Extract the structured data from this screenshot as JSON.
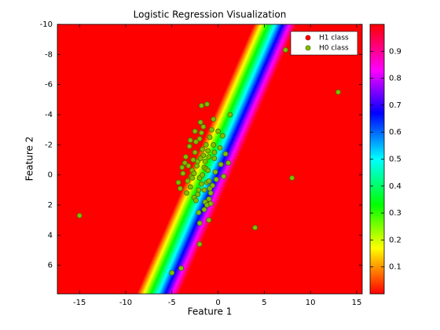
{
  "chart_data": {
    "type": "scatter",
    "title": "Logistic Regression Visualization",
    "xlabel": "Feature 1",
    "ylabel": "Feature 2",
    "xlim": [
      -17.4,
      15.6
    ],
    "ylim": [
      -10,
      7.9
    ],
    "y_reversed": true,
    "xticks": [
      -15,
      -10,
      -5,
      0,
      5,
      10,
      15
    ],
    "yticks": [
      -10,
      -8,
      -6,
      -4,
      -2,
      0,
      2,
      4,
      6
    ],
    "legend": "upper right",
    "colorbar": {
      "clim": [
        0,
        1
      ],
      "ticks": [
        0.1,
        0.2,
        0.3,
        0.4,
        0.5,
        0.6,
        0.7,
        0.8,
        0.9
      ]
    },
    "series": [
      {
        "name": "H1 class",
        "color": "#ff0000",
        "edge": "#b00000",
        "x": [],
        "y": []
      },
      {
        "name": "H0 class",
        "color": "#7fbf00",
        "edge": "#4a6e00",
        "x": [
          -1.5,
          -2,
          -1,
          -0.5,
          -2.5,
          -3,
          -1.8,
          -1.2,
          -0.8,
          -2.2,
          -1.6,
          -0.3,
          0.2,
          -2.8,
          -3.3,
          -1.4,
          -0.9,
          -2.1,
          -1.7,
          -1.1,
          -0.6,
          -2.4,
          -3.6,
          -4.1,
          -1.9,
          -1.3,
          -0.4,
          0.5,
          0.8,
          -2.6,
          -3.1,
          -1.5,
          -2.3,
          -0.7,
          -1.0,
          -2.9,
          -3.8,
          -1.6,
          -0.2,
          0.3,
          -2.0,
          -1.2,
          -2.7,
          -3.4,
          -0.5,
          -1.8,
          -2.5,
          -1.4,
          -0.9,
          -3.0,
          -4.3,
          -2.2,
          -1.1,
          0.0,
          -1.7,
          -2.8,
          -3.5,
          -0.8,
          -1.3,
          -2.1,
          -3.9,
          -2.6,
          -1.5,
          -0.4,
          0.6,
          1.1,
          -2.4,
          -1.9,
          -3.2,
          -1.0,
          -15,
          13,
          7.3,
          8,
          4,
          -5,
          -4,
          -2,
          -1.8,
          -1.2,
          1.3,
          -2,
          -1
        ],
        "y": [
          -0.5,
          0.2,
          -1.2,
          -2.0,
          -1.5,
          0.8,
          -2.8,
          0.5,
          1.2,
          -0.9,
          -3.2,
          -0.2,
          -1.8,
          -0.3,
          0.4,
          1.8,
          -2.5,
          1.0,
          0.0,
          -1.6,
          0.7,
          -2.2,
          -0.8,
          0.9,
          -3.5,
          -0.4,
          -1.1,
          -2.6,
          -1.4,
          1.5,
          -1.9,
          2.3,
          -0.6,
          -3.0,
          1.6,
          0.1,
          -0.1,
          -1.3,
          0.3,
          -0.7,
          -2.4,
          2.0,
          -1.0,
          1.2,
          -3.7,
          0.6,
          -2.9,
          -0.9,
          0.9,
          -2.3,
          0.5,
          1.3,
          -0.3,
          -2.9,
          -1.7,
          0.2,
          -1.2,
          1.9,
          -2.0,
          2.5,
          -0.5,
          -0.1,
          1.0,
          -1.5,
          0.1,
          -0.8,
          1.7,
          -1.1,
          -0.6,
          0.4,
          2.7,
          -5.5,
          -8.3,
          0.2,
          3.5,
          6.5,
          6.2,
          4.6,
          -4.6,
          -4.7,
          -4.0,
          3.2,
          3.0
        ]
      }
    ]
  }
}
